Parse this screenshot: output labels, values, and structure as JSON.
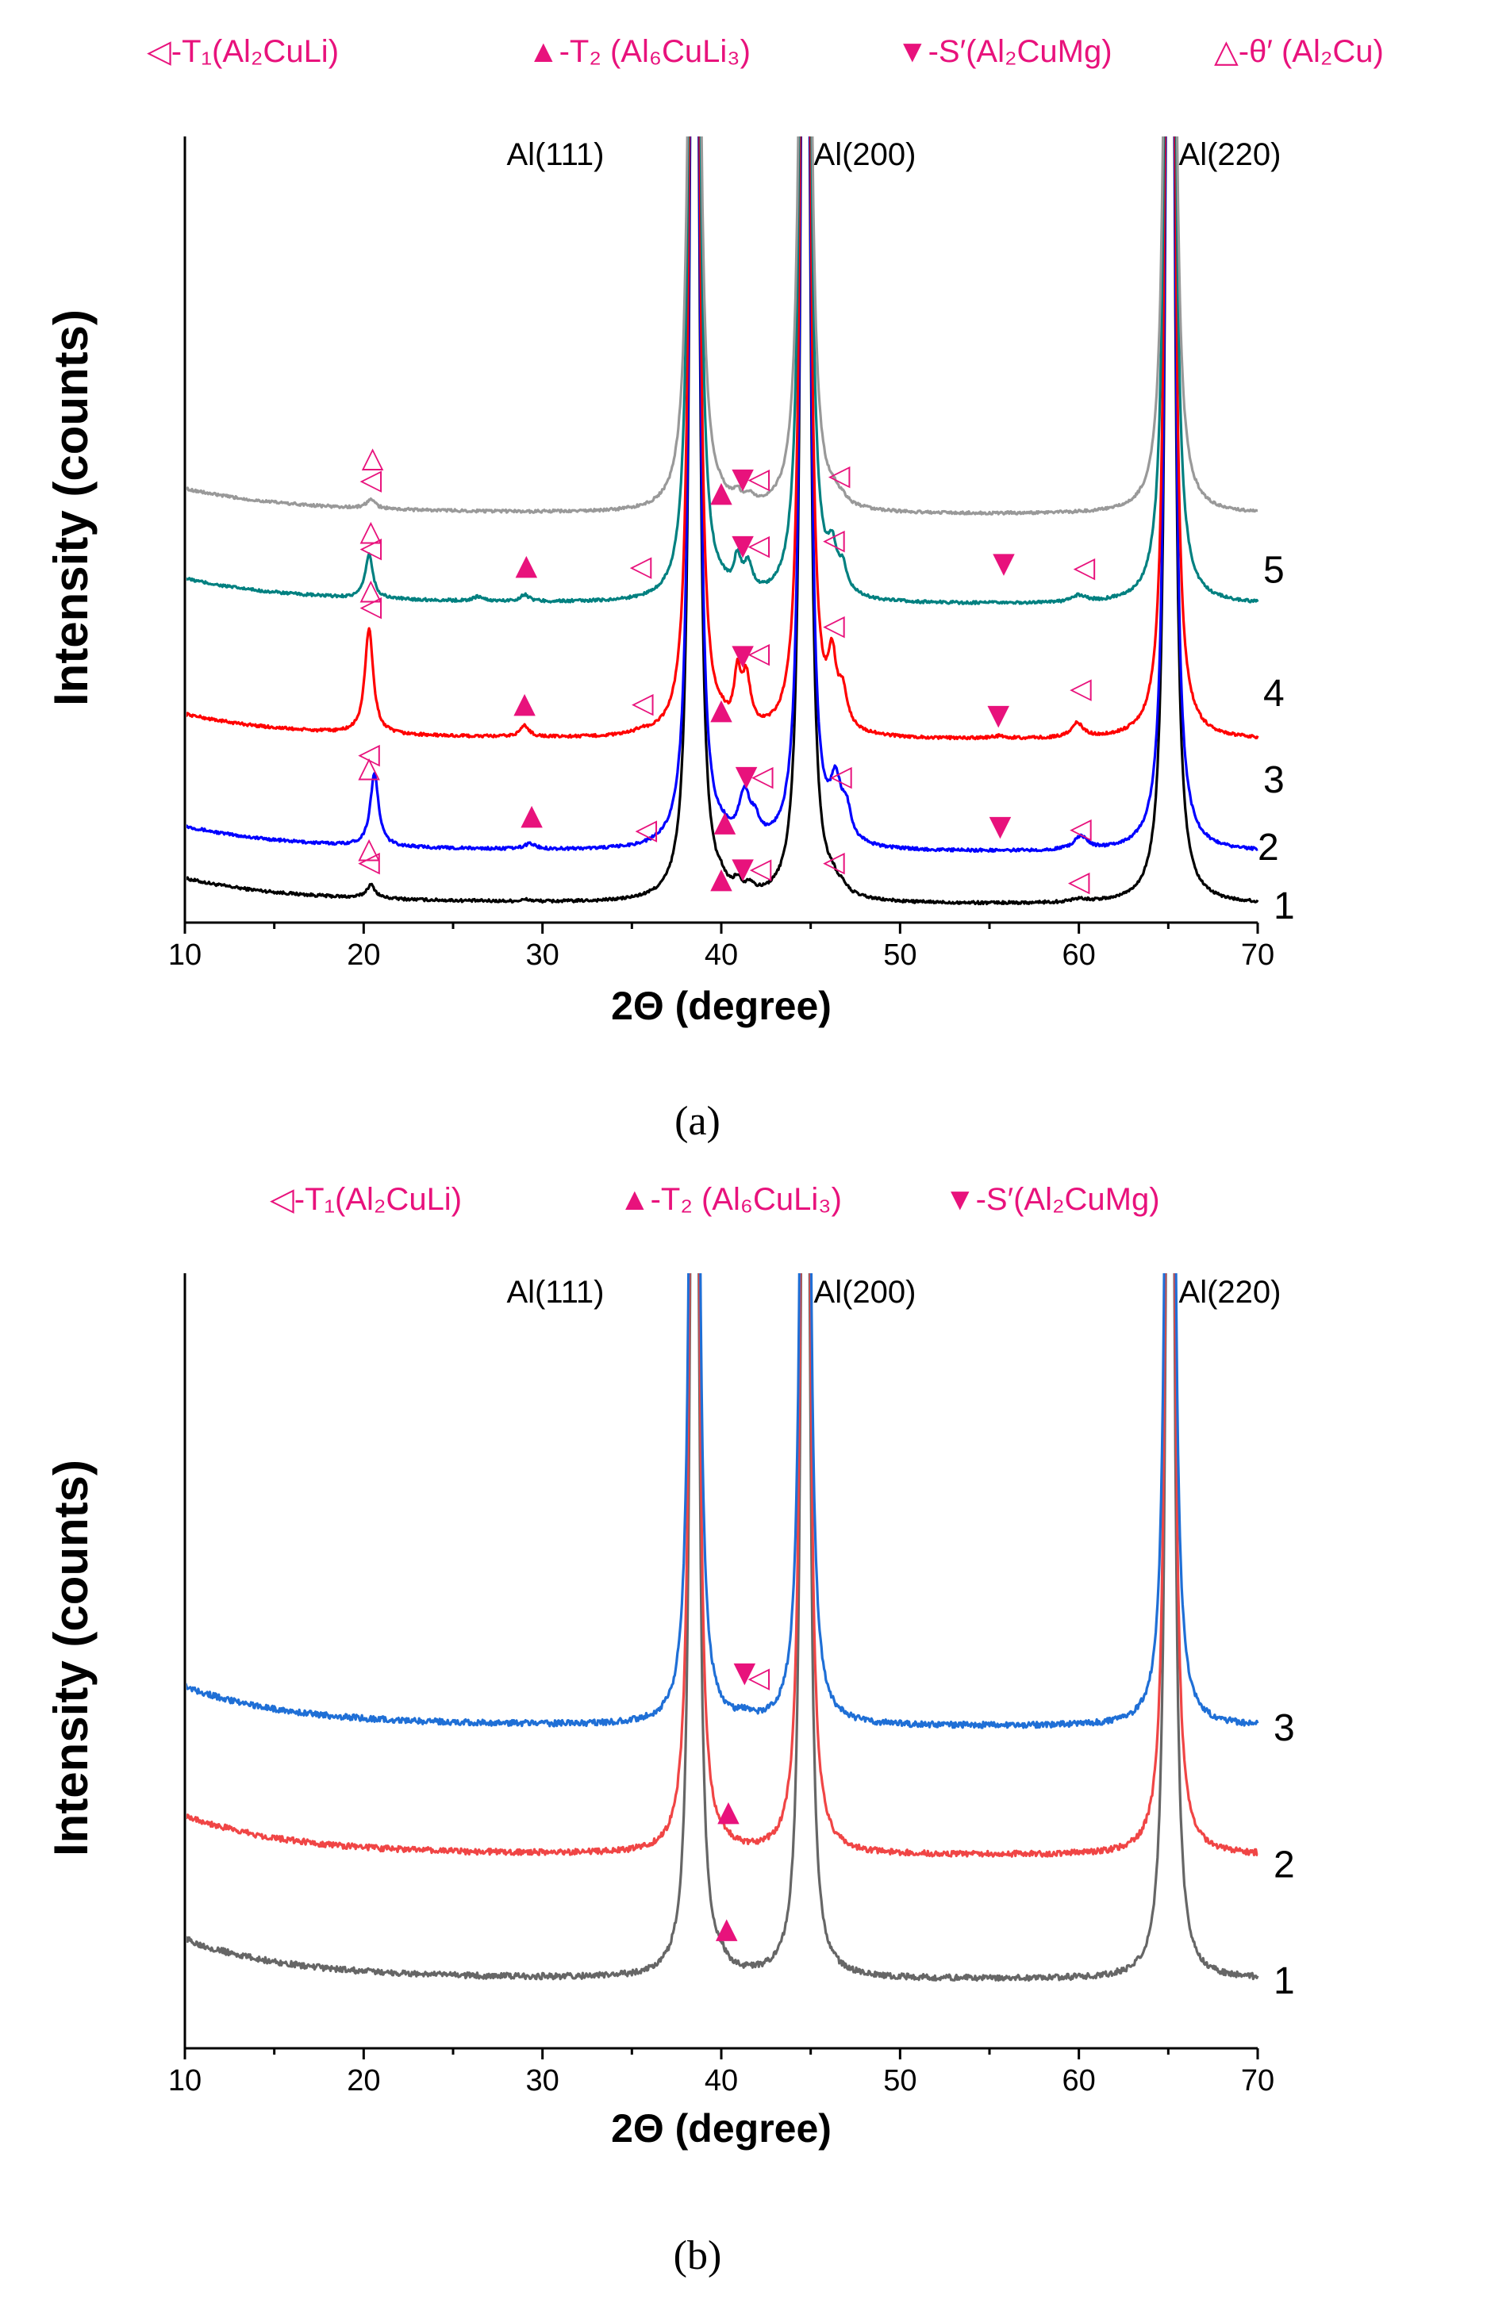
{
  "colors": {
    "phase": "#e8127c",
    "black": "#000000",
    "blue": "#0000ff",
    "red": "#ff0000",
    "teal": "#008080",
    "gray": "#999999",
    "b_blue": "#1f6fd6",
    "b_red": "#f04545",
    "b_gray": "#666666"
  },
  "chart_data": [
    {
      "type": "line",
      "panel_label": "(a)",
      "xlabel": "2Θ (degree)",
      "ylabel": "Intensity (counts)",
      "xlim": [
        10,
        70
      ],
      "x_ticks": [
        "10",
        "20",
        "30",
        "40",
        "50",
        "60",
        "70"
      ],
      "y_tick_labels": false,
      "legend": [
        {
          "symbol": "◁",
          "label": "-T₁(Al₂CuLi)"
        },
        {
          "symbol": "▲",
          "label": "-T₂ (Al₆CuLi₃)"
        },
        {
          "symbol": "▼",
          "label": "-S′(Al₂CuMg)"
        },
        {
          "symbol": "△",
          "label": "-θ′ (Al₂Cu)"
        }
      ],
      "reflections": [
        {
          "label": "Al(111)",
          "x": 38.5
        },
        {
          "label": "Al(200)",
          "x": 44.7
        },
        {
          "label": "Al(220)",
          "x": 65.1
        }
      ],
      "series": [
        {
          "name": "1",
          "color": "black",
          "baseline": 0,
          "tail": 20,
          "slope": 0.45,
          "noise": 1.3,
          "peaks": [
            [
              20.4,
              12,
              0.3
            ],
            [
              29.1,
              1.5,
              0.3
            ],
            [
              40.0,
              6,
              0.3
            ],
            [
              40.9,
              10,
              0.25
            ],
            [
              41.6,
              8,
              0.3
            ],
            [
              46.2,
              9,
              0.35
            ],
            [
              46.8,
              5,
              0.3
            ],
            [
              60.0,
              3,
              0.5
            ]
          ],
          "markers": [
            {
              "symbol": "△",
              "x": 20.3,
              "y": 42
            },
            {
              "symbol": "◁",
              "x": 20.3,
              "y": 30
            },
            {
              "symbol": "▲",
              "x": 40.0,
              "y": 15
            },
            {
              "symbol": "▼",
              "x": 41.2,
              "y": 24
            },
            {
              "symbol": "◁",
              "x": 42.2,
              "y": 24
            },
            {
              "symbol": "◁",
              "x": 46.3,
              "y": 30
            },
            {
              "symbol": "◁",
              "x": 60.0,
              "y": 12
            }
          ]
        },
        {
          "name": "2",
          "color": "blue",
          "baseline": 47,
          "tail": 20,
          "slope": 0.45,
          "noise": 1.3,
          "peaks": [
            [
              20.6,
              65,
              0.28
            ],
            [
              29.3,
              5,
              0.35
            ],
            [
              40.1,
              5,
              0.4
            ],
            [
              41.3,
              42,
              0.38
            ],
            [
              41.9,
              15,
              0.3
            ],
            [
              46.4,
              48,
              0.38
            ],
            [
              47.0,
              25,
              0.3
            ],
            [
              60.1,
              12,
              0.45
            ]
          ],
          "markers": [
            {
              "symbol": "◁",
              "x": 20.3,
              "y": 80
            },
            {
              "symbol": "▲",
              "x": 29.4,
              "y": 25
            },
            {
              "symbol": "◁",
              "x": 35.8,
              "y": 12
            },
            {
              "symbol": "▲",
              "x": 40.2,
              "y": 19
            },
            {
              "symbol": "▼",
              "x": 41.4,
              "y": 60
            },
            {
              "symbol": "◁",
              "x": 42.3,
              "y": 60
            },
            {
              "symbol": "◁",
              "x": 46.7,
              "y": 60
            },
            {
              "symbol": "▼",
              "x": 55.6,
              "y": 15
            },
            {
              "symbol": "◁",
              "x": 60.1,
              "y": 13
            }
          ]
        },
        {
          "name": "3",
          "color": "red",
          "baseline": 148,
          "tail": 20,
          "slope": 0.45,
          "noise": 1.3,
          "peaks": [
            [
              20.3,
              95,
              0.28
            ],
            [
              29.0,
              10,
              0.3
            ],
            [
              35.5,
              3,
              0.4
            ],
            [
              40.0,
              5,
              0.3
            ],
            [
              40.9,
              45,
              0.22
            ],
            [
              41.4,
              45,
              0.28
            ],
            [
              46.2,
              55,
              0.28
            ],
            [
              46.8,
              30,
              0.3
            ],
            [
              55.5,
              2,
              0.5
            ],
            [
              59.9,
              13,
              0.4
            ]
          ],
          "markers": [
            {
              "symbol": "△",
              "x": 20.3,
              "y": -33
            },
            {
              "symbol": "◁",
              "x": 20.4,
              "y": 112
            },
            {
              "symbol": "△",
              "x": 20.4,
              "y": 127
            },
            {
              "symbol": "▲",
              "x": 29.0,
              "y": 25
            },
            {
              "symbol": "◁",
              "x": 35.6,
              "y": 25
            },
            {
              "symbol": "▲",
              "x": 40.0,
              "y": 19
            },
            {
              "symbol": "▼",
              "x": 41.2,
              "y": 68
            },
            {
              "symbol": "◁",
              "x": 42.1,
              "y": 70
            },
            {
              "symbol": "◁",
              "x": 46.3,
              "y": 95
            },
            {
              "symbol": "▼",
              "x": 55.5,
              "y": 14
            },
            {
              "symbol": "◁",
              "x": 60.1,
              "y": 38
            }
          ]
        },
        {
          "name": "4",
          "color": "teal",
          "baseline": 270,
          "tail": 20,
          "slope": 0.45,
          "noise": 1.3,
          "peaks": [
            [
              20.3,
              40,
              0.25
            ],
            [
              26.4,
              4,
              0.3
            ],
            [
              29.0,
              6,
              0.3
            ],
            [
              40.0,
              4,
              0.3
            ],
            [
              40.9,
              28,
              0.25
            ],
            [
              41.5,
              24,
              0.3
            ],
            [
              46.2,
              33,
              0.3
            ],
            [
              46.8,
              20,
              0.3
            ],
            [
              60.0,
              6,
              0.45
            ]
          ],
          "markers": [
            {
              "symbol": "◁",
              "x": 20.4,
              "y": 43
            },
            {
              "symbol": "△",
              "x": 20.4,
              "y": 58
            },
            {
              "symbol": "▲",
              "x": 29.1,
              "y": 27
            },
            {
              "symbol": "◁",
              "x": 35.5,
              "y": 26
            },
            {
              "symbol": "▼",
              "x": 41.2,
              "y": 45
            },
            {
              "symbol": "◁",
              "x": 42.1,
              "y": 45
            },
            {
              "symbol": "◁",
              "x": 46.3,
              "y": 50
            },
            {
              "symbol": "▼",
              "x": 55.8,
              "y": 29
            },
            {
              "symbol": "◁",
              "x": 60.3,
              "y": 25
            }
          ]
        },
        {
          "name": "5",
          "color": "gray",
          "baseline": 351,
          "tail": 20,
          "slope": 0.45,
          "noise": 1.3,
          "peaks": [
            [
              20.4,
              8,
              0.3
            ],
            [
              40.0,
              3,
              0.3
            ],
            [
              40.9,
              9,
              0.25
            ],
            [
              41.6,
              7,
              0.3
            ],
            [
              46.3,
              7,
              0.3
            ],
            [
              46.8,
              4,
              0.3
            ]
          ],
          "markers": [
            {
              "symbol": "△",
              "x": 20.5,
              "y": 43
            },
            {
              "symbol": "◁",
              "x": 20.4,
              "y": 23
            },
            {
              "symbol": "▲",
              "x": 40.0,
              "y": 12
            },
            {
              "symbol": "▼",
              "x": 41.2,
              "y": 24
            },
            {
              "symbol": "◁",
              "x": 42.1,
              "y": 24
            },
            {
              "symbol": "◁",
              "x": 46.6,
              "y": 27
            }
          ]
        }
      ]
    },
    {
      "type": "line",
      "panel_label": "(b)",
      "xlabel": "2Θ (degree)",
      "ylabel": "Intensity (counts)",
      "xlim": [
        10,
        70
      ],
      "x_ticks": [
        "10",
        "20",
        "30",
        "40",
        "50",
        "60",
        "70"
      ],
      "y_tick_labels": false,
      "legend": [
        {
          "symbol": "◁",
          "label": "-T₁(Al₂CuLi)"
        },
        {
          "symbol": "▲",
          "label": "-T₂ (Al₆CuLi₃)"
        },
        {
          "symbol": "▼",
          "label": "-S′(Al₂CuMg)"
        }
      ],
      "reflections": [
        {
          "label": "Al(111)",
          "x": 38.5
        },
        {
          "label": "Al(200)",
          "x": 44.7
        },
        {
          "label": "Al(220)",
          "x": 65.1
        }
      ],
      "series": [
        {
          "name": "1",
          "color": "b_gray",
          "baseline": 0,
          "tail": 38,
          "slope": 0.35,
          "noise": 3.0,
          "peaks": [
            [
              40.0,
              7,
              0.3
            ]
          ],
          "markers": [
            {
              "symbol": "▲",
              "x": 40.3,
              "y": 42
            }
          ]
        },
        {
          "name": "2",
          "color": "b_red",
          "baseline": 125,
          "tail": 38,
          "slope": 0.35,
          "noise": 3.0,
          "peaks": [
            [
              40.2,
              4,
              0.3
            ]
          ],
          "markers": [
            {
              "symbol": "▲",
              "x": 40.4,
              "y": 35
            }
          ]
        },
        {
          "name": "3",
          "color": "b_blue",
          "baseline": 255,
          "tail": 38,
          "slope": 0.35,
          "noise": 3.0,
          "peaks": [
            [
              41.3,
              5,
              0.4
            ]
          ],
          "markers": [
            {
              "symbol": "▼",
              "x": 41.3,
              "y": 45
            },
            {
              "symbol": "◁",
              "x": 42.1,
              "y": 40
            }
          ]
        }
      ]
    }
  ]
}
